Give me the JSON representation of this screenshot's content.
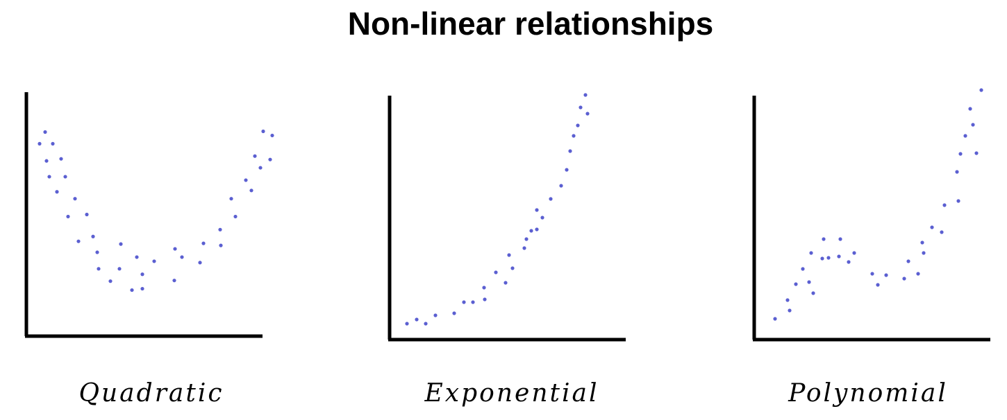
{
  "title": "Non-linear relationships",
  "chart_data": [
    {
      "type": "scatter",
      "title": "Quadratic",
      "color": "#5b5fd1",
      "xlim": [
        0,
        340
      ],
      "ylim": [
        0,
        355
      ],
      "x": [
        19,
        27,
        38,
        29,
        50,
        33,
        56,
        44,
        70,
        60,
        87,
        75,
        96,
        102,
        104,
        121,
        136,
        134,
        159,
        152,
        167,
        167,
        184,
        213,
        214,
        224,
        250,
        255,
        280,
        279,
        301,
        295,
        316,
        324,
        329,
        337,
        341,
        354,
        351
      ],
      "y": [
        280,
        297,
        280,
        255,
        258,
        232,
        232,
        210,
        200,
        174,
        177,
        138,
        145,
        122,
        98,
        80,
        134,
        98,
        115,
        67,
        69,
        90,
        109,
        81,
        127,
        115,
        107,
        135,
        132,
        155,
        174,
        200,
        227,
        212,
        262,
        245,
        298,
        292,
        257
      ]
    },
    {
      "type": "scatter",
      "title": "Exponential",
      "color": "#5b5fd1",
      "xlim": [
        0,
        340
      ],
      "ylim": [
        0,
        352
      ],
      "x": [
        25,
        39,
        52,
        66,
        93,
        107,
        120,
        137,
        136,
        153,
        167,
        172,
        177,
        194,
        197,
        204,
        212,
        212,
        220,
        232,
        247,
        255,
        260,
        265,
        271,
        275,
        282,
        285
      ],
      "y": [
        23,
        29,
        23,
        35,
        38,
        54,
        54,
        58,
        75,
        97,
        82,
        122,
        103,
        132,
        145,
        157,
        159,
        187,
        176,
        203,
        222,
        245,
        272,
        294,
        309,
        335,
        353,
        326
      ]
    },
    {
      "type": "scatter",
      "title": "Polynomial",
      "color": "#5b5fd1",
      "xlim": [
        0,
        340
      ],
      "ylim": [
        0,
        352
      ],
      "x": [
        30,
        48,
        51,
        60,
        70,
        79,
        82,
        85,
        98,
        100,
        107,
        124,
        122,
        136,
        144,
        170,
        178,
        190,
        216,
        222,
        236,
        242,
        244,
        256,
        270,
        274,
        294,
        292,
        297,
        304,
        311,
        315,
        320,
        327
      ],
      "y": [
        30,
        57,
        42,
        80,
        102,
        83,
        125,
        67,
        117,
        145,
        118,
        145,
        120,
        112,
        125,
        95,
        79,
        93,
        88,
        113,
        95,
        140,
        125,
        162,
        155,
        194,
        200,
        242,
        268,
        294,
        333,
        310,
        269,
        360
      ]
    }
  ]
}
